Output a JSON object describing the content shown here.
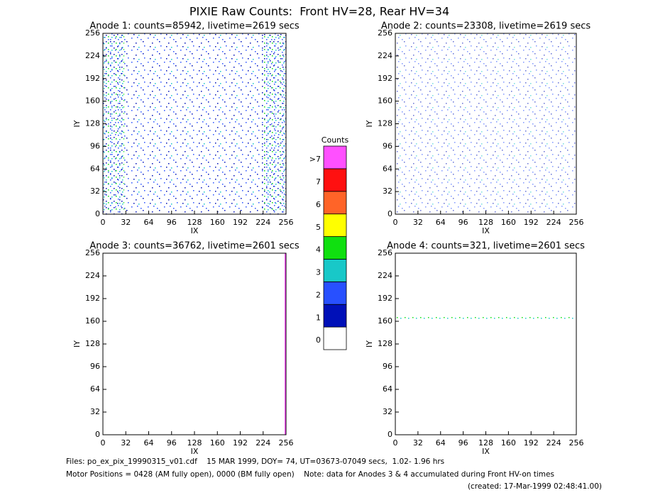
{
  "title": "PIXIE Raw Counts:  Front HV=28, Rear HV=34",
  "chart_data": [
    {
      "type": "heatmap",
      "title": "Anode 1: counts=85942, livetime=2619 secs",
      "xlabel": "IX",
      "ylabel": "IY",
      "xlim": [
        0,
        256
      ],
      "ylim": [
        0,
        256
      ],
      "xticks": [
        0,
        32,
        64,
        96,
        128,
        160,
        192,
        224,
        256
      ],
      "yticks": [
        0,
        32,
        64,
        96,
        128,
        160,
        192,
        224,
        256
      ]
    },
    {
      "type": "heatmap",
      "title": "Anode 2: counts=23308, livetime=2619 secs",
      "xlabel": "IX",
      "ylabel": "IY",
      "xlim": [
        0,
        256
      ],
      "ylim": [
        0,
        256
      ],
      "xticks": [
        0,
        32,
        64,
        96,
        128,
        160,
        192,
        224,
        256
      ],
      "yticks": [
        0,
        32,
        64,
        96,
        128,
        160,
        192,
        224,
        256
      ]
    },
    {
      "type": "heatmap",
      "title": "Anode 3: counts=36762, livetime=2601 secs",
      "xlabel": "IX",
      "ylabel": "IY",
      "xlim": [
        0,
        256
      ],
      "ylim": [
        0,
        256
      ],
      "xticks": [
        0,
        32,
        64,
        96,
        128,
        160,
        192,
        224,
        256
      ],
      "yticks": [
        0,
        32,
        64,
        96,
        128,
        160,
        192,
        224,
        256
      ]
    },
    {
      "type": "heatmap",
      "title": "Anode 4: counts=321, livetime=2601 secs",
      "xlabel": "IX",
      "ylabel": "IY",
      "xlim": [
        0,
        256
      ],
      "ylim": [
        0,
        256
      ],
      "xticks": [
        0,
        32,
        64,
        96,
        128,
        160,
        192,
        224,
        256
      ],
      "yticks": [
        0,
        32,
        64,
        96,
        128,
        160,
        192,
        224,
        256
      ]
    }
  ],
  "colorbar": {
    "title": "Counts",
    "labels": [
      "0",
      "1",
      "2",
      "3",
      "4",
      "5",
      "6",
      "7",
      ">7"
    ],
    "colors": [
      "#ffffff",
      "#0010b8",
      "#2850ff",
      "#18c8c8",
      "#10e010",
      "#ffff00",
      "#ff6428",
      "#ff1010",
      "#ff50ff"
    ]
  },
  "footer": [
    "Files: po_ex_pix_19990315_v01.cdf    15 MAR 1999, DOY= 74, UT=03673-07049 secs,  1.02- 1.96 hrs",
    "Motor Positions = 0428 (AM fully open), 0000 (BM fully open)    Note: data for Anodes 3 & 4 accumulated during Front HV-on times",
    "(created: 17-Mar-1999 02:48:41.00)"
  ]
}
